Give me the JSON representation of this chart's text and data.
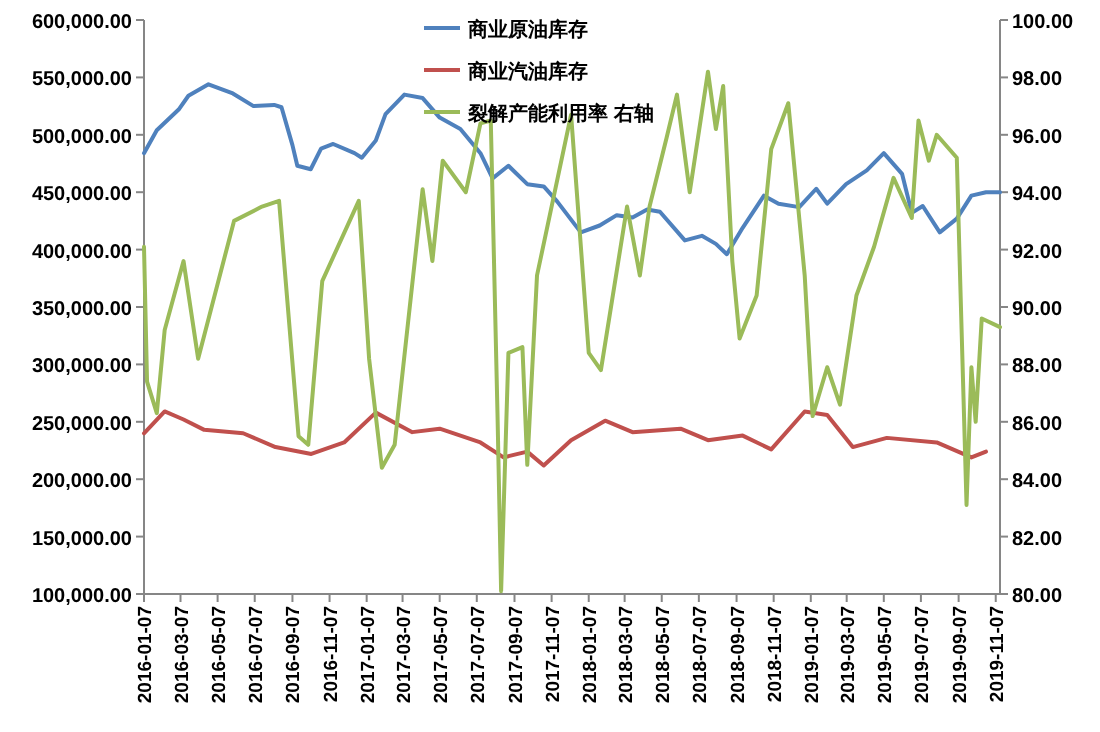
{
  "chart_data": {
    "type": "line",
    "legend": "top",
    "marker": "none",
    "line_style": "solid",
    "grid": false,
    "xlim": [
      "2016-01-07",
      "2019-11-14"
    ],
    "xticks": [
      "2016-01-07",
      "2016-03-07",
      "2016-05-07",
      "2016-07-07",
      "2016-09-07",
      "2016-11-07",
      "2017-01-07",
      "2017-03-07",
      "2017-05-07",
      "2017-07-07",
      "2017-09-07",
      "2017-11-07",
      "2018-01-07",
      "2018-03-07",
      "2018-05-07",
      "2018-07-07",
      "2018-09-07",
      "2018-11-07",
      "2019-01-07",
      "2019-03-07",
      "2019-05-07",
      "2019-07-07",
      "2019-09-07",
      "2019-11-07"
    ],
    "ylim": [
      100000,
      600000
    ],
    "yticks": [
      {
        "value": 100000,
        "label": "100,000.00"
      },
      {
        "value": 150000,
        "label": "150,000.00"
      },
      {
        "value": 200000,
        "label": "200,000.00"
      },
      {
        "value": 250000,
        "label": "250,000.00"
      },
      {
        "value": 300000,
        "label": "300,000.00"
      },
      {
        "value": 350000,
        "label": "350,000.00"
      },
      {
        "value": 400000,
        "label": "400,000.00"
      },
      {
        "value": 450000,
        "label": "450,000.00"
      },
      {
        "value": 500000,
        "label": "500,000.00"
      },
      {
        "value": 550000,
        "label": "550,000.00"
      },
      {
        "value": 600000,
        "label": "600,000.00"
      }
    ],
    "y2lim": [
      80,
      100
    ],
    "y2ticks": [
      {
        "value": 80,
        "label": "80.00"
      },
      {
        "value": 82,
        "label": "82.00"
      },
      {
        "value": 84,
        "label": "84.00"
      },
      {
        "value": 86,
        "label": "86.00"
      },
      {
        "value": 88,
        "label": "88.00"
      },
      {
        "value": 90,
        "label": "90.00"
      },
      {
        "value": 92,
        "label": "92.00"
      },
      {
        "value": 94,
        "label": "94.00"
      },
      {
        "value": 96,
        "label": "96.00"
      },
      {
        "value": 98,
        "label": "98.00"
      },
      {
        "value": 100,
        "label": "100.00"
      }
    ],
    "series": [
      {
        "name": "商业原油库存",
        "color": "#4f81bd",
        "x": [
          "2016-01-07",
          "2016-01-28",
          "2016-03-04",
          "2016-03-20",
          "2016-04-22",
          "2016-06-01",
          "2016-07-05",
          "2016-08-08",
          "2016-08-20",
          "2016-09-07",
          "2016-09-15",
          "2016-10-07",
          "2016-10-24",
          "2016-11-13",
          "2016-12-18",
          "2016-12-30",
          "2017-01-22",
          "2017-02-07",
          "2017-03-10",
          "2017-04-09",
          "2017-05-07",
          "2017-06-10",
          "2017-07-13",
          "2017-08-02",
          "2017-08-28",
          "2017-09-28",
          "2017-10-25",
          "2017-11-16",
          "2017-12-25",
          "2018-01-25",
          "2018-02-22",
          "2018-03-20",
          "2018-04-13",
          "2018-05-04",
          "2018-06-14",
          "2018-07-12",
          "2018-08-04",
          "2018-08-22",
          "2018-09-17",
          "2018-10-22",
          "2018-11-15",
          "2018-12-19",
          "2019-01-16",
          "2019-02-03",
          "2019-03-06",
          "2019-04-09",
          "2019-05-07",
          "2019-06-06",
          "2019-06-22",
          "2019-07-10",
          "2019-08-07",
          "2019-09-04",
          "2019-09-28",
          "2019-10-22",
          "2019-11-14"
        ],
        "values": [
          484000,
          504000,
          522000,
          534000,
          544000,
          536000,
          525000,
          526000,
          524000,
          491000,
          473000,
          470000,
          488000,
          492000,
          484000,
          480000,
          495000,
          518000,
          535000,
          532000,
          515000,
          505000,
          484000,
          462000,
          473000,
          457000,
          455000,
          442000,
          415000,
          421000,
          430000,
          428000,
          435000,
          433000,
          408000,
          412000,
          405000,
          396000,
          419000,
          447000,
          440000,
          437000,
          453000,
          440000,
          457000,
          469000,
          484000,
          466000,
          432000,
          438000,
          415000,
          427000,
          447000,
          450000,
          450000
        ]
      },
      {
        "name": "商业汽油库存",
        "color": "#c0504d",
        "x": [
          "2016-01-07",
          "2016-02-10",
          "2016-03-12",
          "2016-04-15",
          "2016-06-18",
          "2016-08-10",
          "2016-10-08",
          "2016-12-01",
          "2017-01-22",
          "2017-03-23",
          "2017-05-07",
          "2017-07-13",
          "2017-08-20",
          "2017-09-28",
          "2017-10-25",
          "2017-12-09",
          "2018-02-03",
          "2018-03-20",
          "2018-06-07",
          "2018-07-22",
          "2018-09-17",
          "2018-11-03",
          "2018-12-28",
          "2019-02-03",
          "2019-03-17",
          "2019-05-12",
          "2019-08-02",
          "2019-09-28",
          "2019-10-22"
        ],
        "values": [
          240000,
          259000,
          252000,
          243000,
          240000,
          228000,
          222000,
          232000,
          258000,
          241000,
          244000,
          232000,
          219000,
          224000,
          212000,
          234000,
          251000,
          241000,
          244000,
          234000,
          238000,
          226000,
          259000,
          256000,
          228000,
          236000,
          232000,
          219000,
          224000
        ]
      },
      {
        "name": "裂解产能利用率 右轴",
        "color": "#9bbb59",
        "axis": "y2",
        "x": [
          "2016-01-07",
          "2016-01-12",
          "2016-01-28",
          "2016-02-10",
          "2016-03-12",
          "2016-04-05",
          "2016-06-03",
          "2016-07-19",
          "2016-08-16",
          "2016-09-17",
          "2016-10-03",
          "2016-10-26",
          "2016-12-25",
          "2017-01-11",
          "2017-02-01",
          "2017-02-22",
          "2017-04-09",
          "2017-04-25",
          "2017-05-12",
          "2017-06-19",
          "2017-07-13",
          "2017-07-30",
          "2017-08-10",
          "2017-08-16",
          "2017-08-28",
          "2017-09-20",
          "2017-09-28",
          "2017-10-14",
          "2017-12-09",
          "2018-01-07",
          "2018-01-27",
          "2018-03-11",
          "2018-04-01",
          "2018-04-17",
          "2018-05-15",
          "2018-06-01",
          "2018-06-22",
          "2018-07-22",
          "2018-08-04",
          "2018-08-16",
          "2018-08-31",
          "2018-09-12",
          "2018-10-10",
          "2018-11-03",
          "2018-12-01",
          "2018-12-28",
          "2019-01-10",
          "2019-02-03",
          "2019-02-24",
          "2019-03-23",
          "2019-04-21",
          "2019-05-23",
          "2019-06-22",
          "2019-07-03",
          "2019-07-20",
          "2019-08-02",
          "2019-09-04",
          "2019-09-10",
          "2019-09-20",
          "2019-09-28",
          "2019-10-05",
          "2019-10-15",
          "2019-11-14"
        ],
        "values": [
          92.1,
          87.4,
          86.3,
          89.2,
          91.6,
          88.2,
          93.0,
          93.5,
          93.7,
          85.5,
          85.2,
          90.9,
          93.7,
          88.2,
          84.4,
          85.2,
          94.1,
          91.6,
          95.1,
          94.0,
          96.4,
          96.5,
          86.3,
          80.1,
          88.4,
          88.6,
          84.5,
          91.1,
          96.7,
          88.4,
          87.8,
          93.5,
          91.1,
          93.5,
          95.9,
          97.4,
          94.0,
          98.2,
          96.2,
          97.7,
          91.6,
          88.9,
          90.4,
          95.5,
          97.1,
          91.1,
          86.2,
          87.9,
          86.6,
          90.4,
          92.1,
          94.5,
          93.1,
          96.5,
          95.1,
          96.0,
          95.2,
          90.6,
          83.1,
          87.9,
          86.0,
          89.6,
          89.3
        ]
      }
    ]
  }
}
